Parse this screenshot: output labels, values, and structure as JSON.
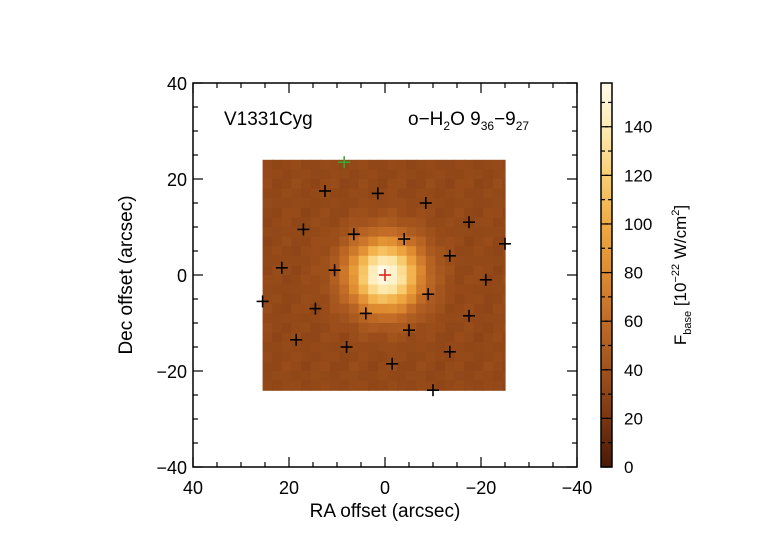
{
  "chart_data": {
    "type": "heatmap",
    "object_label": "V1331Cyg",
    "line_label": {
      "prefix": "o−H",
      "sub1": "2",
      "mid": "O 9",
      "sub2": "36",
      "dash": "−9",
      "sub3": "27"
    },
    "xlabel": "RA offset (arcsec)",
    "ylabel": "Dec offset (arcsec)",
    "xlim": [
      40,
      -40
    ],
    "ylim": [
      -40,
      40
    ],
    "x_ticks": [
      40,
      20,
      0,
      -20,
      -40
    ],
    "x_tick_labels": [
      "40",
      "20",
      "0",
      "−20",
      "−40"
    ],
    "y_ticks": [
      -40,
      -20,
      0,
      20,
      40
    ],
    "y_tick_labels": [
      "−40",
      "−20",
      "0",
      "20",
      "40"
    ],
    "image_extent": {
      "ra": [
        25.5,
        -25
      ],
      "dec": [
        -24,
        24
      ]
    },
    "peak": {
      "ra": 0,
      "dec": 0,
      "value": 158
    },
    "background_level": 33,
    "colorbar": {
      "label": {
        "prefix": "F",
        "sub": "base",
        "bracket": " [10",
        "sup1": "−22",
        "units": " W/cm",
        "sup2": "2",
        "close": "]"
      },
      "range": [
        0,
        158
      ],
      "ticks": [
        0,
        20,
        40,
        60,
        80,
        100,
        120,
        140
      ],
      "tick_labels": [
        "0",
        "20",
        "40",
        "60",
        "80",
        "100",
        "120",
        "140"
      ],
      "colors": [
        "#4a1a06",
        "#7a3510",
        "#a0521c",
        "#c06a26",
        "#dd8a30",
        "#f0a840",
        "#f8cc6e",
        "#fde9ae",
        "#fffbea"
      ]
    },
    "spaxels": [
      {
        "ra": 0,
        "dec": 0,
        "color": "red"
      },
      {
        "ra": 8.5,
        "dec": 23.5,
        "color": "green"
      },
      {
        "ra": 12.5,
        "dec": 17.5
      },
      {
        "ra": 1.5,
        "dec": 17
      },
      {
        "ra": -8.5,
        "dec": 15
      },
      {
        "ra": -17.5,
        "dec": 11
      },
      {
        "ra": 17,
        "dec": 9.5
      },
      {
        "ra": 6.5,
        "dec": 8.5
      },
      {
        "ra": -4,
        "dec": 7.5
      },
      {
        "ra": -25,
        "dec": 6.5
      },
      {
        "ra": 21.5,
        "dec": 1.5
      },
      {
        "ra": 10.5,
        "dec": 1
      },
      {
        "ra": -13.5,
        "dec": 4
      },
      {
        "ra": -21,
        "dec": -1
      },
      {
        "ra": 25.5,
        "dec": -5.5
      },
      {
        "ra": 14.5,
        "dec": -7
      },
      {
        "ra": 4,
        "dec": -8
      },
      {
        "ra": -9,
        "dec": -4
      },
      {
        "ra": -5,
        "dec": -11.5
      },
      {
        "ra": -17.5,
        "dec": -8.5
      },
      {
        "ra": 18.5,
        "dec": -13.5
      },
      {
        "ra": 8,
        "dec": -15
      },
      {
        "ra": -13.5,
        "dec": -16
      },
      {
        "ra": -1.5,
        "dec": -18.5
      },
      {
        "ra": -10,
        "dec": -24
      }
    ]
  }
}
